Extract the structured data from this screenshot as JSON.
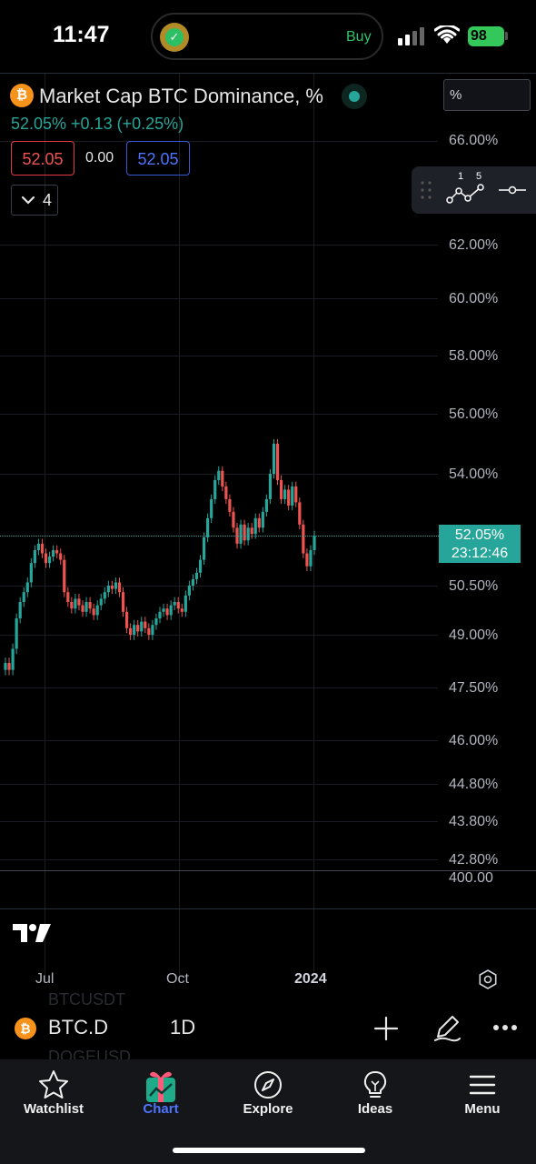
{
  "status_bar": {
    "time": "11:47",
    "island_action": "Buy",
    "battery": "98"
  },
  "header": {
    "symbol_title": "Market Cap BTC Dominance, %",
    "price_line": "52.05% +0.13 (+0.25%)",
    "bid": "52.05",
    "spread": "0.00",
    "ask": "52.05",
    "indicators_count": "4"
  },
  "scale": {
    "mode": "%"
  },
  "price_axis": {
    "labels": [
      "66.00%",
      "62.00%",
      "60.00%",
      "58.00%",
      "56.00%",
      "54.00%",
      "50.50%",
      "49.00%",
      "47.50%",
      "46.00%",
      "44.80%",
      "43.80%",
      "42.80%"
    ],
    "volume_label": "400.00"
  },
  "price_tag": {
    "value": "52.05%",
    "countdown": "23:12:46"
  },
  "time_axis": {
    "labels": [
      "Jul",
      "Oct",
      "2024"
    ]
  },
  "symbol_bar": {
    "symbol": "BTC.D",
    "interval": "1D",
    "ghost_above": "BTCUSDT",
    "ghost_below": "DOGEUSD"
  },
  "tool_panel": {
    "series_labels": [
      "1",
      "5"
    ]
  },
  "nav": {
    "items": [
      {
        "label": "Watchlist",
        "icon": "star-icon"
      },
      {
        "label": "Chart",
        "icon": "gift-chart-icon"
      },
      {
        "label": "Explore",
        "icon": "compass-icon"
      },
      {
        "label": "Ideas",
        "icon": "lightbulb-icon"
      },
      {
        "label": "Menu",
        "icon": "hamburger-icon"
      }
    ],
    "active": "Chart"
  },
  "colors": {
    "up": "#26a69a",
    "down": "#ef5350",
    "accent": "#4d74ff",
    "btc": "#f7931a"
  },
  "chart_data": {
    "type": "candlestick",
    "symbol": "BTC.D",
    "interval": "1D",
    "y_unit": "%",
    "last_value": 52.05,
    "x_ticks": [
      "Jul",
      "Oct",
      "2024"
    ],
    "y_ticks": [
      42.8,
      43.8,
      44.8,
      46.0,
      47.5,
      49.0,
      50.5,
      52.05,
      54.0,
      56.0,
      58.0,
      60.0,
      62.0,
      66.0
    ],
    "close_series": [
      48.2,
      48.0,
      48.6,
      49.5,
      50.0,
      50.3,
      50.6,
      51.2,
      51.6,
      51.8,
      51.5,
      51.2,
      51.4,
      51.6,
      51.5,
      51.3,
      50.3,
      50.0,
      49.8,
      50.1,
      49.9,
      49.7,
      50.0,
      49.8,
      49.6,
      49.9,
      50.1,
      50.3,
      50.5,
      50.4,
      50.6,
      50.3,
      49.7,
      49.2,
      49.0,
      49.3,
      49.1,
      49.4,
      49.2,
      49.0,
      49.3,
      49.5,
      49.7,
      49.8,
      49.6,
      49.9,
      50.0,
      49.8,
      49.7,
      50.2,
      50.5,
      50.7,
      50.9,
      51.3,
      52.0,
      52.6,
      53.2,
      53.8,
      54.1,
      53.6,
      53.2,
      52.8,
      52.3,
      51.8,
      52.4,
      51.9,
      52.3,
      52.1,
      52.6,
      52.3,
      52.8,
      53.2,
      54.0,
      55.0,
      53.8,
      53.2,
      53.5,
      53.0,
      53.6,
      53.1,
      52.4,
      51.5,
      51.1,
      51.6,
      52.05
    ]
  }
}
